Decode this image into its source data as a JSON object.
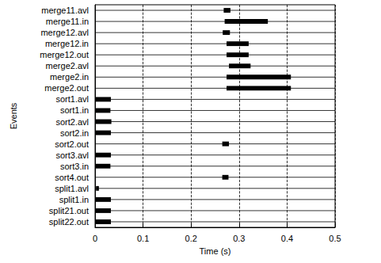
{
  "chart_data": {
    "type": "timeline",
    "x_label": "Time (s)",
    "y_label": "Events",
    "categories": [
      "merge11.avl",
      "merge11.in",
      "merge12.avl",
      "merge12.in",
      "merge12.out",
      "merge2.avl",
      "merge2.in",
      "merge2.out",
      "sort1.avl",
      "sort1.in",
      "sort2.avl",
      "sort2.in",
      "sort2.out",
      "sort3.avl",
      "sort3.in",
      "sort4.out",
      "split1.avl",
      "split1.in",
      "split21.out",
      "split22.out"
    ],
    "values": [
      [
        0.268,
        0.282
      ],
      [
        0.27,
        0.36
      ],
      [
        0.266,
        0.281
      ],
      [
        0.274,
        0.32
      ],
      [
        0.274,
        0.32
      ],
      [
        0.279,
        0.324
      ],
      [
        0.274,
        0.408
      ],
      [
        0.274,
        0.408
      ],
      [
        0,
        0.033
      ],
      [
        0,
        0.032
      ],
      [
        0,
        0.034
      ],
      [
        0,
        0.033
      ],
      [
        0.265,
        0.279
      ],
      [
        0,
        0.033
      ],
      [
        0,
        0.032
      ],
      [
        0.265,
        0.278
      ],
      [
        0.002,
        0.008
      ],
      [
        0,
        0.033
      ],
      [
        0,
        0.033
      ],
      [
        0,
        0.033
      ]
    ],
    "color": "#000000",
    "xlim": [
      0,
      0.5
    ],
    "xticks": [
      0,
      0.1,
      0.2,
      0.3,
      0.4,
      0.5
    ],
    "grid": true
  }
}
